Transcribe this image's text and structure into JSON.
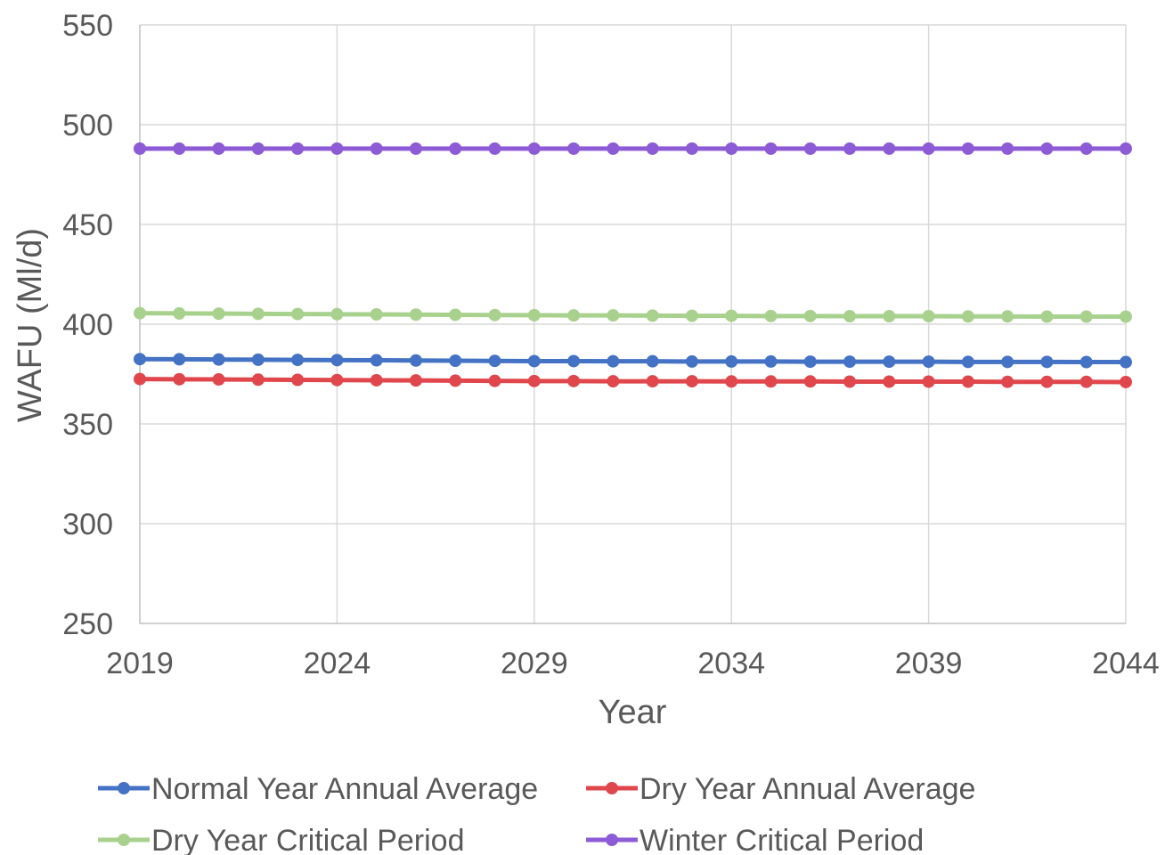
{
  "chart_data": {
    "type": "line",
    "xlabel": "Year",
    "ylabel": "WAFU (Ml/d)",
    "xlim": [
      2019,
      2044
    ],
    "ylim": [
      250,
      550
    ],
    "x_ticks": [
      2019,
      2024,
      2029,
      2034,
      2039,
      2044
    ],
    "y_ticks": [
      250,
      300,
      350,
      400,
      450,
      500,
      550
    ],
    "grid": true,
    "legend_position": "bottom",
    "x": [
      2019,
      2020,
      2021,
      2022,
      2023,
      2024,
      2025,
      2026,
      2027,
      2028,
      2029,
      2030,
      2031,
      2032,
      2033,
      2034,
      2035,
      2036,
      2037,
      2038,
      2039,
      2040,
      2041,
      2042,
      2043,
      2044
    ],
    "series": [
      {
        "name": "Normal Year Annual Average",
        "color": "#4472C4",
        "values": [
          382.5,
          382.4,
          382.3,
          382.2,
          382.1,
          382.0,
          381.9,
          381.8,
          381.7,
          381.6,
          381.5,
          381.5,
          381.4,
          381.4,
          381.3,
          381.3,
          381.3,
          381.2,
          381.2,
          381.2,
          381.2,
          381.1,
          381.1,
          381.1,
          381.0,
          381.0
        ]
      },
      {
        "name": "Dry Year Annual Average",
        "color": "#E0474C",
        "values": [
          372.5,
          372.4,
          372.3,
          372.2,
          372.1,
          372.0,
          371.9,
          371.8,
          371.7,
          371.6,
          371.5,
          371.5,
          371.4,
          371.4,
          371.4,
          371.3,
          371.3,
          371.3,
          371.2,
          371.2,
          371.2,
          371.2,
          371.1,
          371.1,
          371.1,
          371.0
        ]
      },
      {
        "name": "Dry Year Critical Period",
        "color": "#A9D18E",
        "values": [
          405.5,
          405.4,
          405.3,
          405.2,
          405.1,
          405.0,
          404.9,
          404.8,
          404.7,
          404.6,
          404.5,
          404.4,
          404.4,
          404.3,
          404.2,
          404.2,
          404.1,
          404.1,
          404.0,
          404.0,
          404.0,
          403.9,
          403.9,
          403.8,
          403.8,
          403.8
        ]
      },
      {
        "name": "Winter Critical Period",
        "color": "#8E5BD6",
        "values": [
          488,
          488,
          488,
          488,
          488,
          488,
          488,
          488,
          488,
          488,
          488,
          488,
          488,
          488,
          488,
          488,
          488,
          488,
          488,
          488,
          488,
          488,
          488,
          488,
          488,
          488
        ]
      }
    ]
  }
}
